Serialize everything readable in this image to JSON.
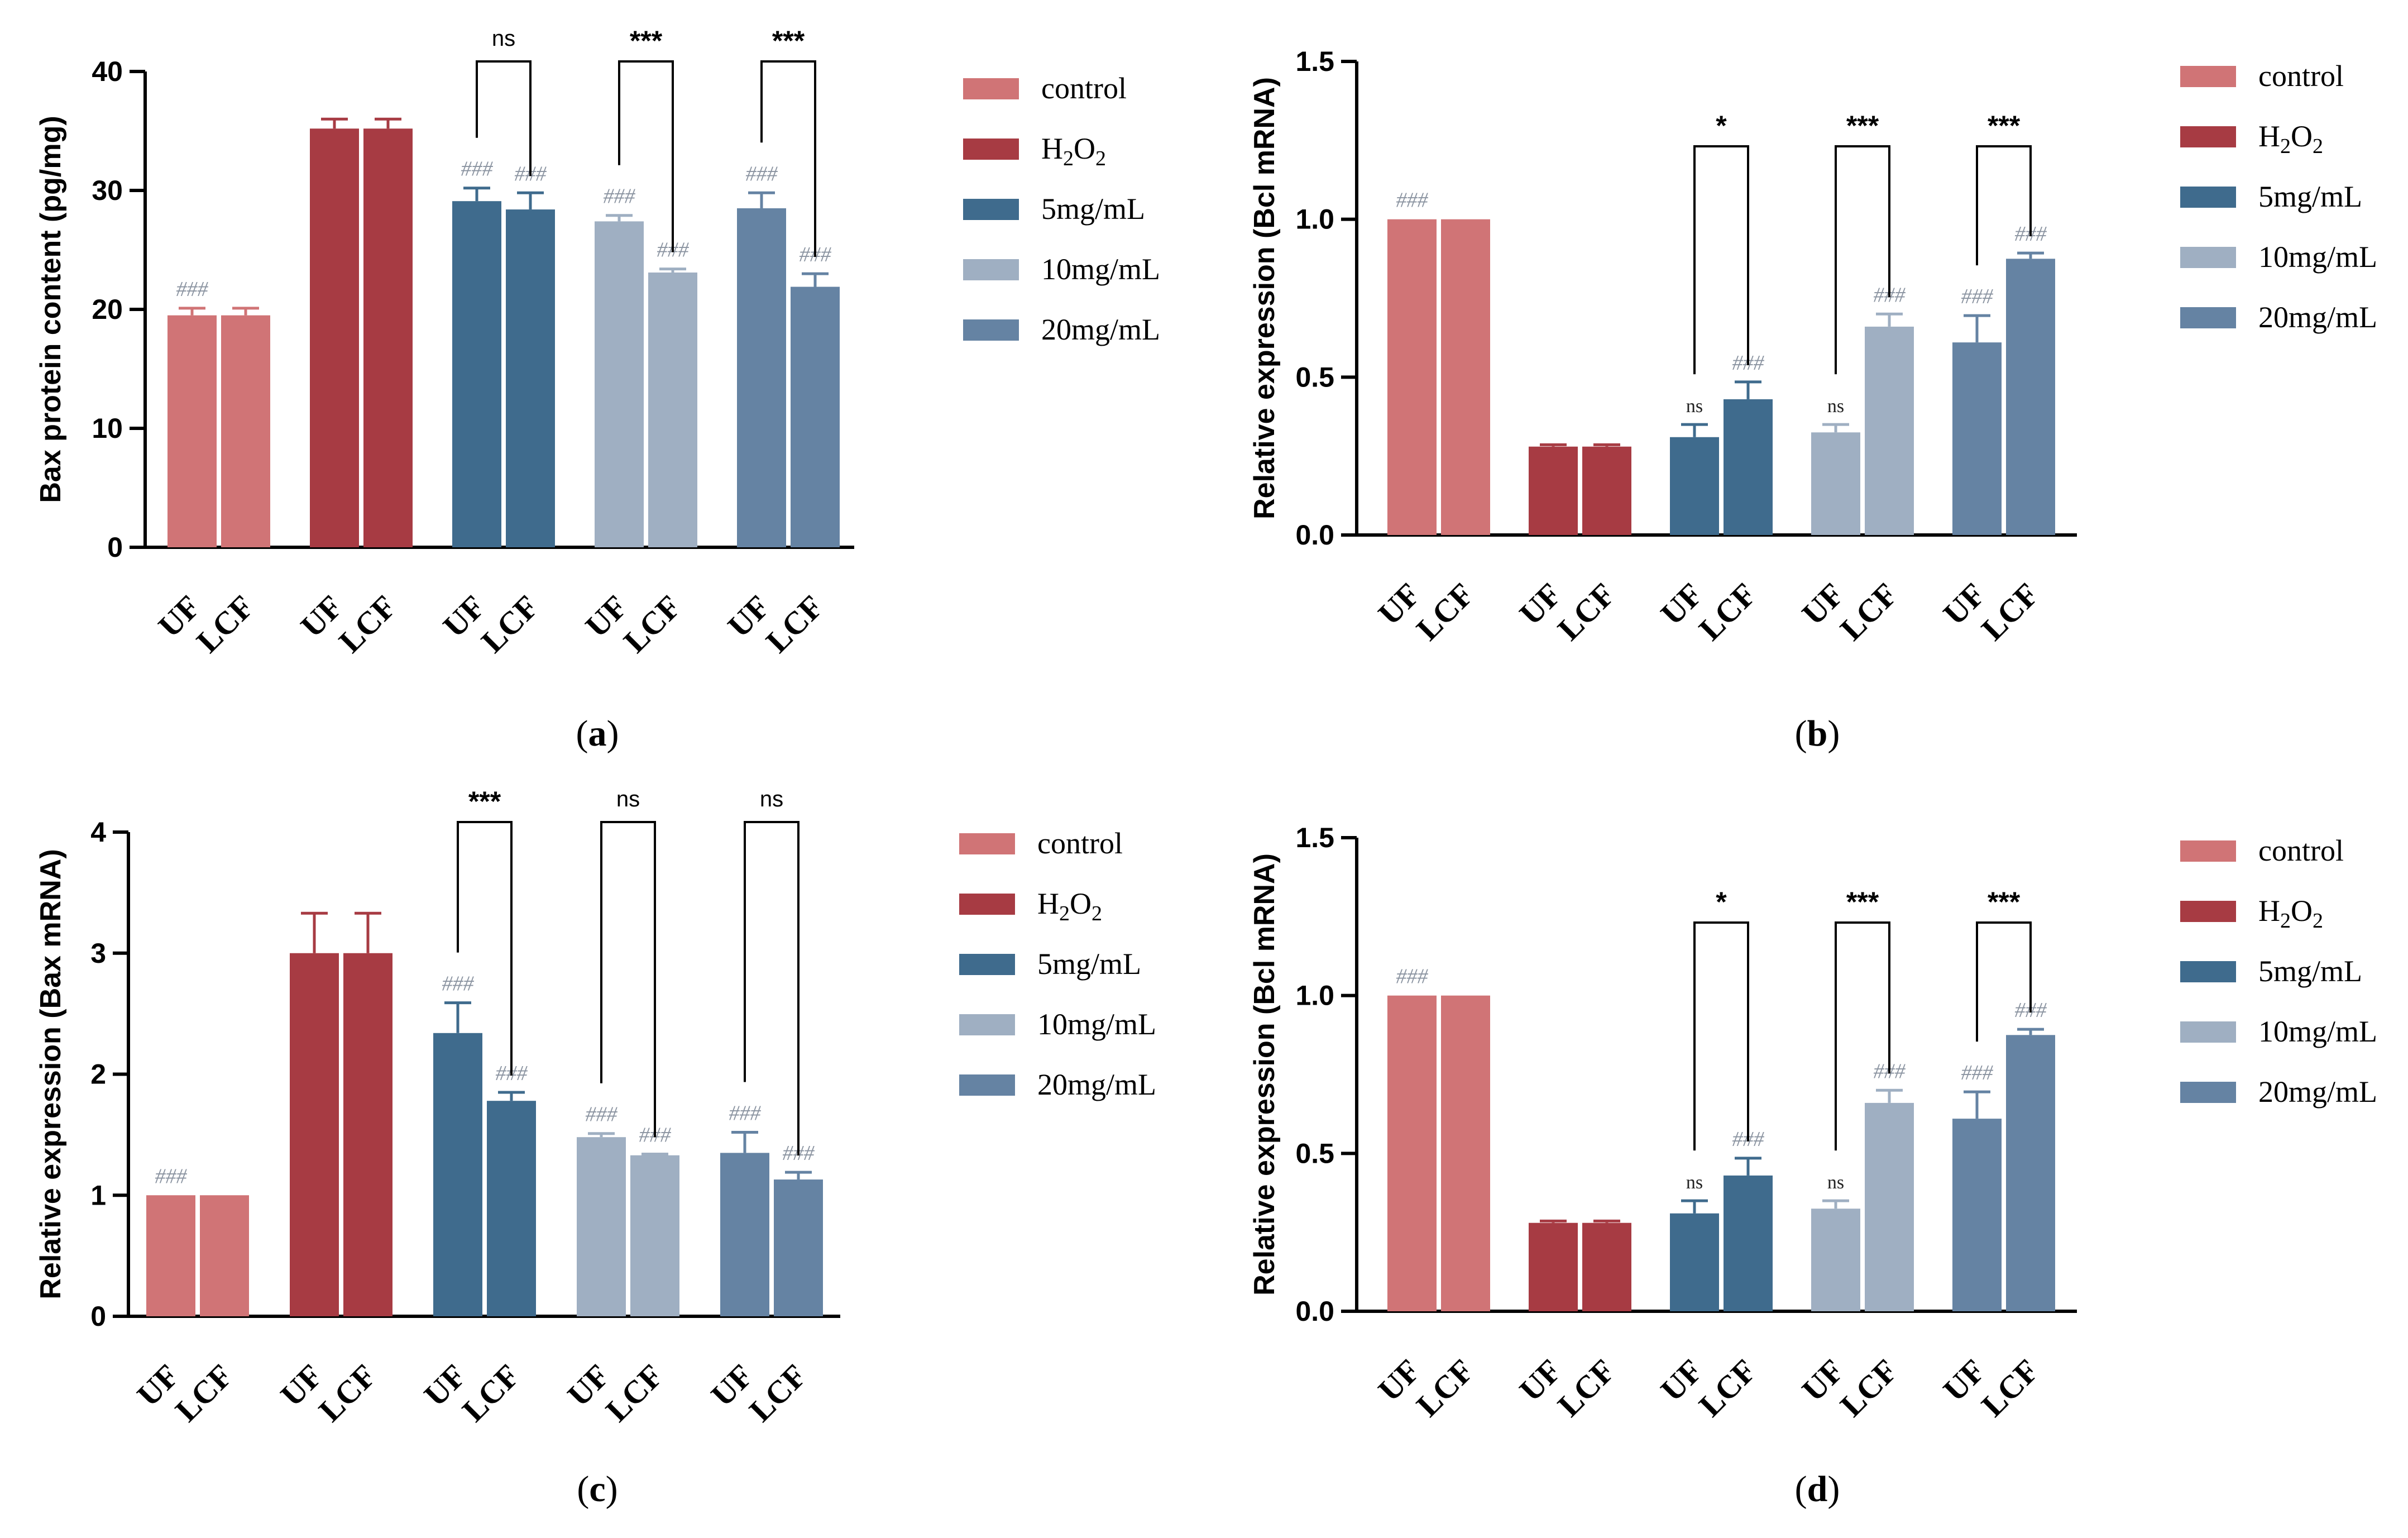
{
  "legend": {
    "entries": [
      {
        "label": "control",
        "color": "#d07476"
      },
      {
        "label": "H",
        "sub": "2",
        "label2": "O",
        "sub2": "2",
        "color": "#a73b43"
      },
      {
        "label": "5mg/mL",
        "color": "#3f6b8d"
      },
      {
        "label": "10mg/mL",
        "color": "#9fafc2"
      },
      {
        "label": "20mg/mL",
        "color": "#6583a3"
      }
    ]
  },
  "chart_data": [
    {
      "type": "bar",
      "panel_label": "a",
      "ylabel": "Bax protein content  (pg/mg)",
      "ylim": [
        0,
        40
      ],
      "yticks": [
        0,
        10,
        20,
        30,
        40
      ],
      "grid": false,
      "legend_position": "right",
      "groups": [
        "control",
        "H2O2",
        "5mg/mL",
        "10mg/mL",
        "20mg/mL"
      ],
      "categories": [
        "UF",
        "LCF"
      ],
      "series": [
        {
          "group": "control",
          "values": [
            19.5,
            19.5
          ],
          "errors": [
            0.6,
            0.6
          ],
          "marks": [
            "###",
            ""
          ]
        },
        {
          "group": "H2O2",
          "values": [
            35.2,
            35.2
          ],
          "errors": [
            0.8,
            0.8
          ],
          "marks": [
            "",
            ""
          ]
        },
        {
          "group": "5mg/mL",
          "values": [
            29.1,
            28.4
          ],
          "errors": [
            1.1,
            1.4
          ],
          "marks": [
            "###",
            "###"
          ]
        },
        {
          "group": "10mg/mL",
          "values": [
            27.4,
            23.1
          ],
          "errors": [
            0.5,
            0.3
          ],
          "marks": [
            "###",
            "###"
          ]
        },
        {
          "group": "20mg/mL",
          "values": [
            28.5,
            21.9
          ],
          "errors": [
            1.3,
            1.1
          ],
          "marks": [
            "###",
            "###"
          ]
        }
      ],
      "comparisons": [
        {
          "group": "5mg/mL",
          "label": "ns"
        },
        {
          "group": "10mg/mL",
          "label": "***"
        },
        {
          "group": "20mg/mL",
          "label": "***"
        }
      ]
    },
    {
      "type": "bar",
      "panel_label": "b",
      "ylabel": "Relative expression (Bcl mRNA)",
      "ylim": [
        0,
        1.5
      ],
      "yticks": [
        0.0,
        0.5,
        1.0,
        1.5
      ],
      "tick_format": "0.0",
      "grid": false,
      "legend_position": "right",
      "groups": [
        "control",
        "H2O2",
        "5mg/mL",
        "10mg/mL",
        "20mg/mL"
      ],
      "categories": [
        "UF",
        "LCF"
      ],
      "series": [
        {
          "group": "control",
          "values": [
            1.0,
            1.0
          ],
          "errors": [
            0,
            0
          ],
          "marks": [
            "###",
            ""
          ]
        },
        {
          "group": "H2O2",
          "values": [
            0.28,
            0.28
          ],
          "errors": [
            0.006,
            0.006
          ],
          "marks": [
            "",
            ""
          ]
        },
        {
          "group": "5mg/mL",
          "values": [
            0.31,
            0.43
          ],
          "errors": [
            0.04,
            0.055
          ],
          "marks": [
            "ns",
            "###"
          ]
        },
        {
          "group": "10mg/mL",
          "values": [
            0.325,
            0.66
          ],
          "errors": [
            0.025,
            0.04
          ],
          "marks": [
            "ns",
            "###"
          ]
        },
        {
          "group": "20mg/mL",
          "values": [
            0.61,
            0.875
          ],
          "errors": [
            0.085,
            0.018
          ],
          "marks": [
            "###",
            "###"
          ]
        }
      ],
      "comparisons": [
        {
          "group": "5mg/mL",
          "label": "*"
        },
        {
          "group": "10mg/mL",
          "label": "***"
        },
        {
          "group": "20mg/mL",
          "label": "***"
        }
      ]
    },
    {
      "type": "bar",
      "panel_label": "c",
      "ylabel": "Relative expression (Bax mRNA)",
      "ylim": [
        0,
        4
      ],
      "yticks": [
        0,
        1,
        2,
        3,
        4
      ],
      "grid": false,
      "legend_position": "right",
      "groups": [
        "control",
        "H2O2",
        "5mg/mL",
        "10mg/mL",
        "20mg/mL"
      ],
      "categories": [
        "UF",
        "LCF"
      ],
      "series": [
        {
          "group": "control",
          "values": [
            1.0,
            1.0
          ],
          "errors": [
            0,
            0
          ],
          "marks": [
            "###",
            ""
          ]
        },
        {
          "group": "H2O2",
          "values": [
            3.0,
            3.0
          ],
          "errors": [
            0.33,
            0.33
          ],
          "marks": [
            "",
            ""
          ]
        },
        {
          "group": "5mg/mL",
          "values": [
            2.34,
            1.78
          ],
          "errors": [
            0.25,
            0.07
          ],
          "marks": [
            "###",
            "###"
          ]
        },
        {
          "group": "10mg/mL",
          "values": [
            1.48,
            1.33
          ],
          "errors": [
            0.03,
            0.01
          ],
          "marks": [
            "###",
            "###"
          ]
        },
        {
          "group": "20mg/mL",
          "values": [
            1.35,
            1.13
          ],
          "errors": [
            0.17,
            0.06
          ],
          "marks": [
            "###",
            "###"
          ]
        }
      ],
      "comparisons": [
        {
          "group": "5mg/mL",
          "label": "***"
        },
        {
          "group": "10mg/mL",
          "label": "ns"
        },
        {
          "group": "20mg/mL",
          "label": "ns"
        }
      ]
    },
    {
      "type": "bar",
      "panel_label": "d",
      "ylabel": "Relative expression (Bcl mRNA)",
      "ylim": [
        0,
        1.5
      ],
      "yticks": [
        0.0,
        0.5,
        1.0,
        1.5
      ],
      "tick_format": "0.0",
      "grid": false,
      "legend_position": "right",
      "groups": [
        "control",
        "H2O2",
        "5mg/mL",
        "10mg/mL",
        "20mg/mL"
      ],
      "categories": [
        "UF",
        "LCF"
      ],
      "series": [
        {
          "group": "control",
          "values": [
            1.0,
            1.0
          ],
          "errors": [
            0,
            0
          ],
          "marks": [
            "###",
            ""
          ]
        },
        {
          "group": "H2O2",
          "values": [
            0.28,
            0.28
          ],
          "errors": [
            0.006,
            0.006
          ],
          "marks": [
            "",
            ""
          ]
        },
        {
          "group": "5mg/mL",
          "values": [
            0.31,
            0.43
          ],
          "errors": [
            0.04,
            0.055
          ],
          "marks": [
            "ns",
            "###"
          ]
        },
        {
          "group": "10mg/mL",
          "values": [
            0.325,
            0.66
          ],
          "errors": [
            0.025,
            0.04
          ],
          "marks": [
            "ns",
            "###"
          ]
        },
        {
          "group": "20mg/mL",
          "values": [
            0.61,
            0.875
          ],
          "errors": [
            0.085,
            0.018
          ],
          "marks": [
            "###",
            "###"
          ]
        }
      ],
      "comparisons": [
        {
          "group": "5mg/mL",
          "label": "*"
        },
        {
          "group": "10mg/mL",
          "label": "***"
        },
        {
          "group": "20mg/mL",
          "label": "***"
        }
      ]
    }
  ]
}
